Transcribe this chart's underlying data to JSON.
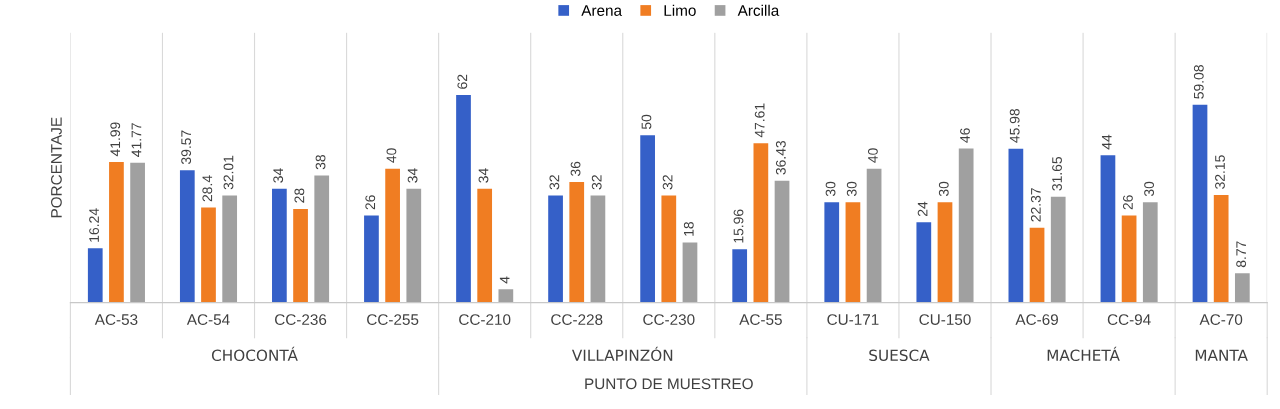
{
  "chart_data": {
    "type": "bar",
    "ylabel": "PORCENTAJE",
    "xlabel": "PUNTO DE MUESTREO",
    "categories": [
      "AC-53",
      "AC-54",
      "CC-236",
      "CC-255",
      "CC-210",
      "CC-228",
      "CC-230",
      "AC-55",
      "CU-171",
      "CU-150",
      "AC-69",
      "CC-94",
      "AC-70"
    ],
    "series": [
      {
        "name": "Arena",
        "color": "#3560c8",
        "values": [
          16.24,
          39.57,
          34,
          26,
          62,
          32,
          50,
          15.96,
          30,
          24,
          45.98,
          44,
          59.08
        ]
      },
      {
        "name": "Limo",
        "color": "#f07d22",
        "values": [
          41.99,
          28.4,
          28,
          40,
          34,
          36,
          32,
          47.61,
          30,
          30,
          22.37,
          26,
          32.15
        ]
      },
      {
        "name": "Arcilla",
        "color": "#a0a0a0",
        "values": [
          41.77,
          32.01,
          38,
          34,
          4,
          32,
          18,
          36.43,
          40,
          46,
          31.65,
          30,
          8.77
        ]
      }
    ],
    "annotations": [
      "CHOCONTÁ",
      "VILLAPINZÓN",
      "SUESCA",
      "MACHETÁ",
      "MANTA"
    ],
    "data_labels": true,
    "legend": "top",
    "grid": false
  }
}
